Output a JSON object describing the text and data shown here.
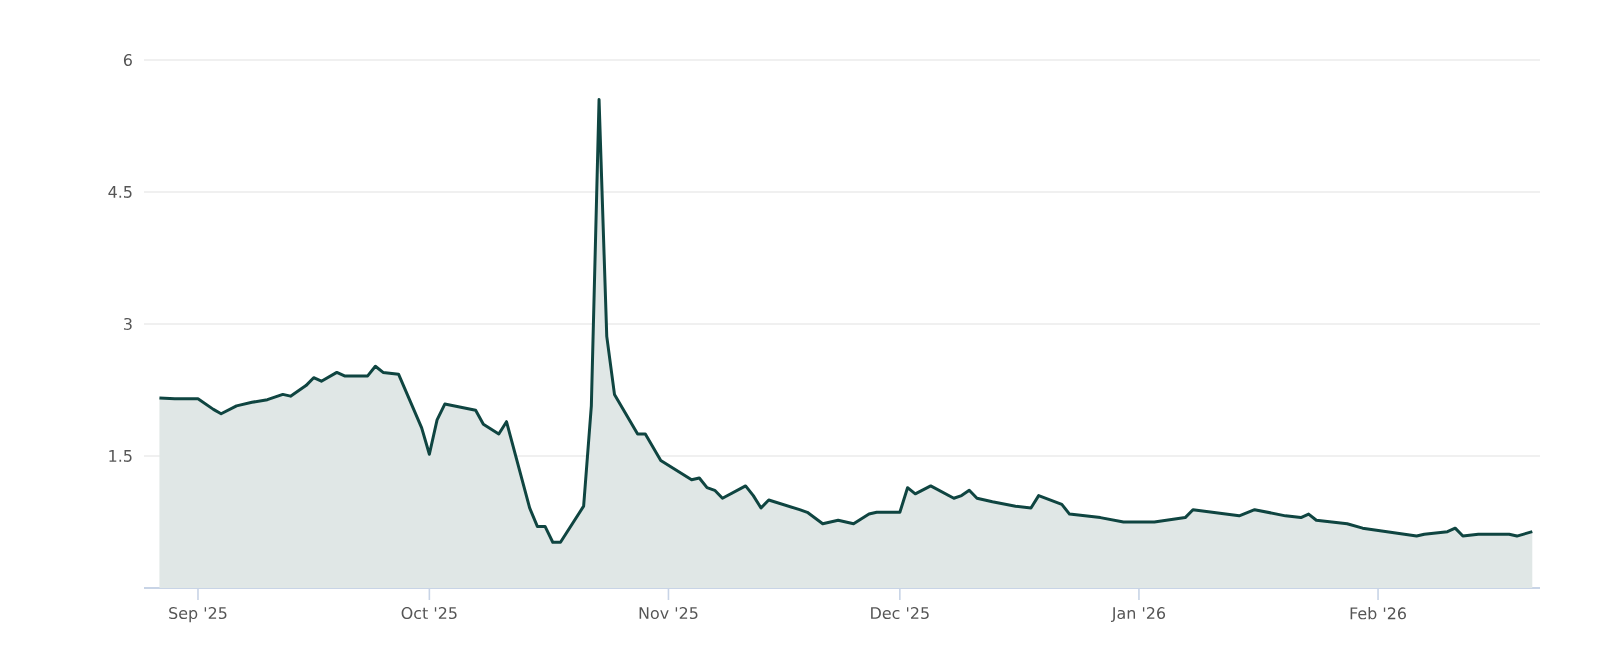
{
  "chart_data": {
    "type": "area",
    "x": [
      "2025-08-27",
      "2025-08-29",
      "2025-09-01",
      "2025-09-03",
      "2025-09-04",
      "2025-09-06",
      "2025-09-08",
      "2025-09-10",
      "2025-09-12",
      "2025-09-13",
      "2025-09-15",
      "2025-09-16",
      "2025-09-17",
      "2025-09-19",
      "2025-09-20",
      "2025-09-23",
      "2025-09-24",
      "2025-09-25",
      "2025-09-27",
      "2025-09-30",
      "2025-10-01",
      "2025-10-02",
      "2025-10-03",
      "2025-10-07",
      "2025-10-08",
      "2025-10-10",
      "2025-10-11",
      "2025-10-14",
      "2025-10-15",
      "2025-10-16",
      "2025-10-17",
      "2025-10-18",
      "2025-10-21",
      "2025-10-22",
      "2025-10-23",
      "2025-10-24",
      "2025-10-25",
      "2025-10-28",
      "2025-10-29",
      "2025-10-31",
      "2025-11-04",
      "2025-11-05",
      "2025-11-06",
      "2025-11-07",
      "2025-11-08",
      "2025-11-11",
      "2025-11-12",
      "2025-11-13",
      "2025-11-14",
      "2025-11-18",
      "2025-11-19",
      "2025-11-21",
      "2025-11-23",
      "2025-11-25",
      "2025-11-27",
      "2025-11-28",
      "2025-12-01",
      "2025-12-02",
      "2025-12-03",
      "2025-12-05",
      "2025-12-08",
      "2025-12-09",
      "2025-12-10",
      "2025-12-11",
      "2025-12-13",
      "2025-12-16",
      "2025-12-18",
      "2025-12-19",
      "2025-12-22",
      "2025-12-23",
      "2025-12-27",
      "2025-12-30",
      "2026-01-03",
      "2026-01-07",
      "2026-01-08",
      "2026-01-14",
      "2026-01-16",
      "2026-01-20",
      "2026-01-22",
      "2026-01-23",
      "2026-01-24",
      "2026-01-28",
      "2026-01-30",
      "2026-02-06",
      "2026-02-07",
      "2026-02-10",
      "2026-02-11",
      "2026-02-12",
      "2026-02-14",
      "2026-02-18",
      "2026-02-19",
      "2026-02-21"
    ],
    "series": [
      {
        "color": "#0f4541",
        "values": [
          2.16,
          2.15,
          2.15,
          2.03,
          1.98,
          2.07,
          2.11,
          2.14,
          2.2,
          2.18,
          2.3,
          2.39,
          2.35,
          2.45,
          2.41,
          2.41,
          2.52,
          2.45,
          2.43,
          1.82,
          1.52,
          1.91,
          2.09,
          2.02,
          1.86,
          1.75,
          1.89,
          0.91,
          0.7,
          0.7,
          0.52,
          0.52,
          0.93,
          2.07,
          5.55,
          2.86,
          2.2,
          1.75,
          1.75,
          1.45,
          1.23,
          1.25,
          1.14,
          1.11,
          1.02,
          1.16,
          1.05,
          0.91,
          1.0,
          0.89,
          0.86,
          0.73,
          0.77,
          0.73,
          0.84,
          0.86,
          0.86,
          1.14,
          1.07,
          1.16,
          1.02,
          1.05,
          1.11,
          1.02,
          0.98,
          0.93,
          0.91,
          1.05,
          0.95,
          0.84,
          0.8,
          0.75,
          0.75,
          0.8,
          0.89,
          0.82,
          0.89,
          0.82,
          0.8,
          0.84,
          0.77,
          0.73,
          0.68,
          0.59,
          0.61,
          0.64,
          0.68,
          0.59,
          0.61,
          0.61,
          0.59,
          0.64
        ]
      }
    ],
    "xlim": [
      "2025-08-25",
      "2026-02-22"
    ],
    "xticks": [
      {
        "value": "2025-09-01",
        "label": "Sep '25"
      },
      {
        "value": "2025-10-01",
        "label": "Oct '25"
      },
      {
        "value": "2025-11-01",
        "label": "Nov '25"
      },
      {
        "value": "2025-12-01",
        "label": "Dec '25"
      },
      {
        "value": "2026-01-01",
        "label": "Jan '26"
      },
      {
        "value": "2026-02-01",
        "label": "Feb '26"
      }
    ],
    "ylim": [
      0,
      6
    ],
    "yticks": [
      1.5,
      3,
      4.5,
      6
    ],
    "grid": "y"
  }
}
